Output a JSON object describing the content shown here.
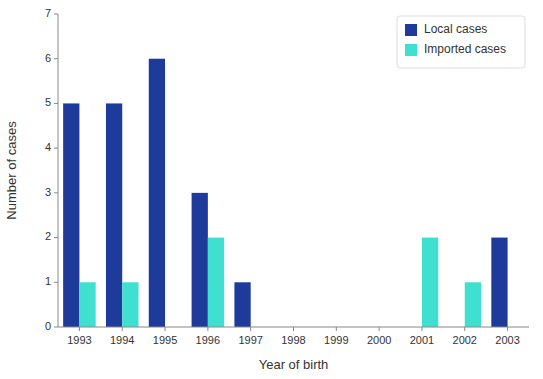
{
  "chart_data": {
    "type": "bar",
    "xlabel": "Year of birth",
    "ylabel": "Number of cases",
    "categories": [
      "1993",
      "1994",
      "1995",
      "1996",
      "1997",
      "1998",
      "1999",
      "2000",
      "2001",
      "2002",
      "2003"
    ],
    "series": [
      {
        "name": "Local cases",
        "color": "#1E3B9C",
        "values": [
          5,
          5,
          6,
          3,
          1,
          0,
          0,
          0,
          0,
          0,
          2
        ]
      },
      {
        "name": "Imported cases",
        "color": "#40E0D0",
        "values": [
          1,
          1,
          0,
          2,
          0,
          0,
          0,
          0,
          2,
          1,
          0
        ]
      }
    ],
    "ylim": [
      0,
      7
    ],
    "yticks": [
      0,
      1,
      2,
      3,
      4,
      5,
      6,
      7
    ],
    "grid": false,
    "legend": "upper-right"
  }
}
